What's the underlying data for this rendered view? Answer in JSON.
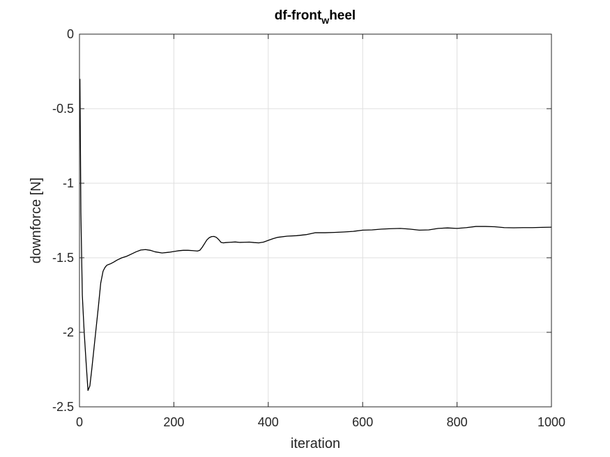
{
  "chart_data": {
    "type": "line",
    "title": {
      "main": "df-front",
      "subscript": "w",
      "rest": "heel"
    },
    "xlabel": "iteration",
    "ylabel": "downforce [N]",
    "xlim": [
      0,
      1000
    ],
    "ylim": [
      -2.5,
      0
    ],
    "xticks": [
      0,
      200,
      400,
      600,
      800,
      1000
    ],
    "yticks": [
      0,
      -0.5,
      -1,
      -1.5,
      -2,
      -2.5
    ],
    "xtick_labels": [
      "0",
      "200",
      "400",
      "600",
      "800",
      "1000"
    ],
    "ytick_labels": [
      "0",
      "-0.5",
      "-1",
      "-1.5",
      "-2",
      "-2.5"
    ],
    "grid": true,
    "box": true,
    "colors": {
      "line": "#000000",
      "axes": "#262626",
      "grid": "#dfdfdf",
      "background": "#ffffff"
    },
    "series": [
      {
        "x": [
          1,
          3,
          6,
          10,
          14,
          18,
          22,
          26,
          30,
          35,
          40,
          45,
          50,
          54,
          58,
          62,
          66,
          72,
          80,
          90,
          100,
          110,
          120,
          130,
          140,
          150,
          160,
          175,
          190,
          200,
          210,
          220,
          230,
          240,
          250,
          255,
          260,
          265,
          270,
          275,
          280,
          285,
          290,
          295,
          300,
          305,
          310,
          320,
          330,
          340,
          350,
          360,
          370,
          380,
          390,
          400,
          410,
          420,
          440,
          460,
          480,
          500,
          520,
          540,
          560,
          580,
          600,
          620,
          640,
          660,
          680,
          700,
          720,
          740,
          760,
          780,
          800,
          820,
          840,
          860,
          880,
          900,
          920,
          940,
          960,
          980,
          1000
        ],
        "y": [
          -0.3,
          -1.2,
          -1.75,
          -2.0,
          -2.2,
          -2.39,
          -2.36,
          -2.25,
          -2.13,
          -1.98,
          -1.83,
          -1.67,
          -1.59,
          -1.565,
          -1.55,
          -1.545,
          -1.54,
          -1.53,
          -1.515,
          -1.5,
          -1.49,
          -1.475,
          -1.46,
          -1.448,
          -1.445,
          -1.45,
          -1.46,
          -1.468,
          -1.463,
          -1.458,
          -1.453,
          -1.45,
          -1.45,
          -1.452,
          -1.455,
          -1.45,
          -1.43,
          -1.405,
          -1.38,
          -1.365,
          -1.358,
          -1.357,
          -1.363,
          -1.378,
          -1.397,
          -1.4,
          -1.398,
          -1.396,
          -1.394,
          -1.397,
          -1.396,
          -1.395,
          -1.398,
          -1.4,
          -1.395,
          -1.383,
          -1.372,
          -1.363,
          -1.355,
          -1.352,
          -1.345,
          -1.332,
          -1.332,
          -1.33,
          -1.327,
          -1.323,
          -1.315,
          -1.313,
          -1.308,
          -1.305,
          -1.303,
          -1.308,
          -1.315,
          -1.313,
          -1.303,
          -1.3,
          -1.303,
          -1.298,
          -1.29,
          -1.29,
          -1.292,
          -1.298,
          -1.299,
          -1.298,
          -1.298,
          -1.296,
          -1.295
        ]
      }
    ]
  }
}
